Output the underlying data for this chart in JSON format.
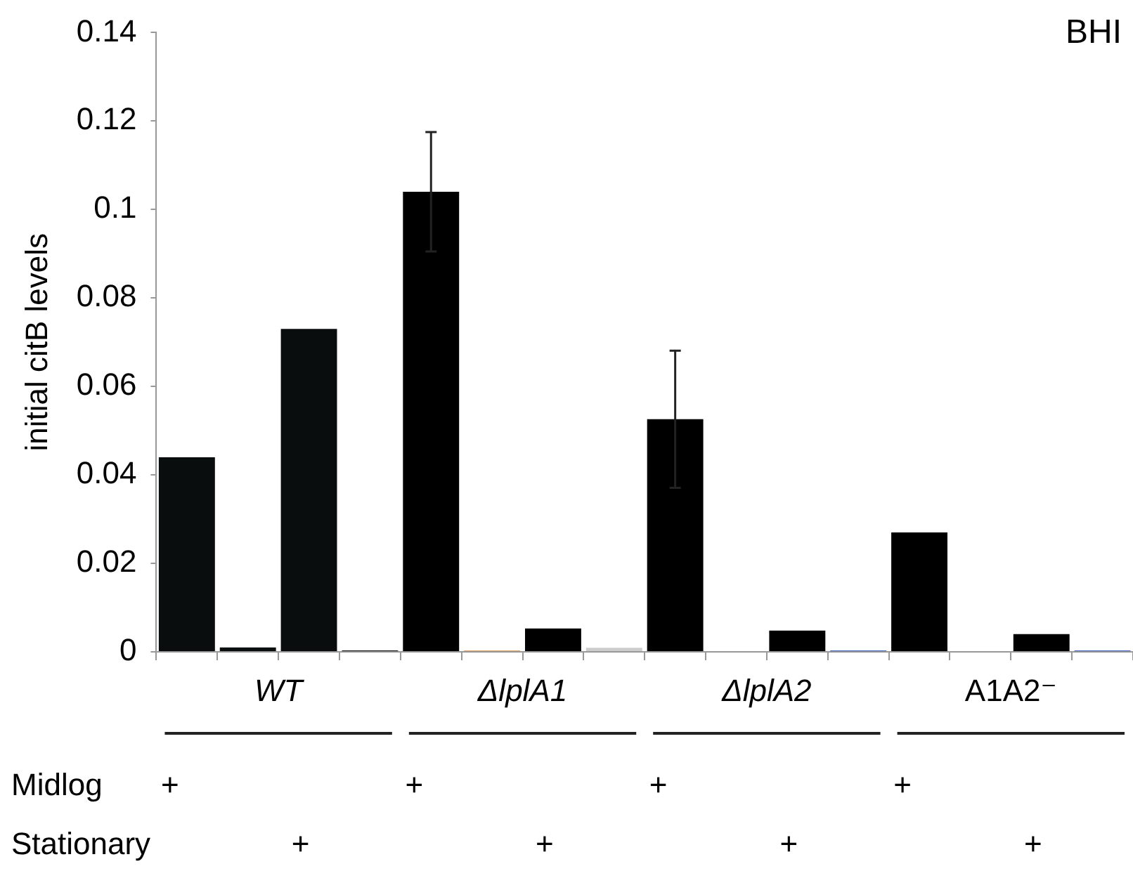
{
  "chart_data": {
    "type": "bar",
    "title": "BHI",
    "ylabel": "initial citB levels",
    "categories": [
      null,
      null,
      null,
      null,
      null,
      null,
      null,
      null,
      null,
      null,
      null,
      null,
      null,
      null,
      null,
      null
    ],
    "values": [
      0.044,
      0.001,
      0.073,
      0.0003,
      0.104,
      0.0003,
      0.0053,
      0.0009,
      0.0526,
      null,
      0.0048,
      0.0003,
      0.027,
      null,
      0.004,
      0.0003
    ],
    "colors": [
      "#0a0d0d",
      "#0a0d0d",
      "#0a0d0d",
      "#0a0d0d",
      "#000000",
      "#e0a060",
      "#000000",
      "#cccccc",
      "#000000",
      "#000000",
      "#000000",
      "#4060c0",
      "#000000",
      "#000000",
      "#000000",
      "#4060c0"
    ],
    "errors": [
      null,
      null,
      null,
      null,
      0.0135,
      null,
      null,
      null,
      0.0155,
      null,
      null,
      null,
      null,
      null,
      null,
      null
    ],
    "ylim": [
      0,
      0.14
    ],
    "yticks": [
      0,
      0.02,
      0.04,
      0.06,
      0.08,
      0.1,
      0.12,
      0.14
    ],
    "grid": false,
    "legend": false,
    "annotations": [
      "WT",
      "ΔlplA1",
      "ΔlplA2",
      "A1A2⁻",
      "Midlog",
      "Stationary",
      "+",
      "+",
      "+",
      "+",
      "+",
      "+",
      "+",
      "+"
    ]
  }
}
